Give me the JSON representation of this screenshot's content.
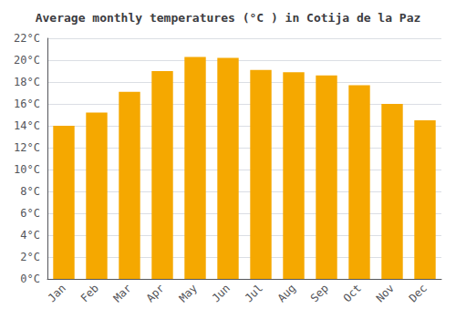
{
  "chart_data": {
    "type": "bar",
    "title": "Average monthly temperatures (°C ) in Cotija de la Paz",
    "categories": [
      "Jan",
      "Feb",
      "Mar",
      "Apr",
      "May",
      "Jun",
      "Jul",
      "Aug",
      "Sep",
      "Oct",
      "Nov",
      "Dec"
    ],
    "values": [
      14.0,
      15.2,
      17.1,
      19.0,
      20.3,
      20.2,
      19.1,
      18.9,
      18.6,
      17.7,
      16.0,
      14.5
    ],
    "color": "#F5A800",
    "ylim": [
      0,
      22
    ],
    "yticks": [
      {
        "value": 0,
        "label": "0°C"
      },
      {
        "value": 2,
        "label": "2°C"
      },
      {
        "value": 4,
        "label": "4°C"
      },
      {
        "value": 6,
        "label": "6°C"
      },
      {
        "value": 8,
        "label": "8°C"
      },
      {
        "value": 10,
        "label": "10°C"
      },
      {
        "value": 12,
        "label": "12°C"
      },
      {
        "value": 14,
        "label": "14°C"
      },
      {
        "value": 16,
        "label": "16°C"
      },
      {
        "value": 18,
        "label": "18°C"
      },
      {
        "value": 20,
        "label": "20°C"
      },
      {
        "value": 22,
        "label": "22°C"
      }
    ],
    "grid": true
  }
}
